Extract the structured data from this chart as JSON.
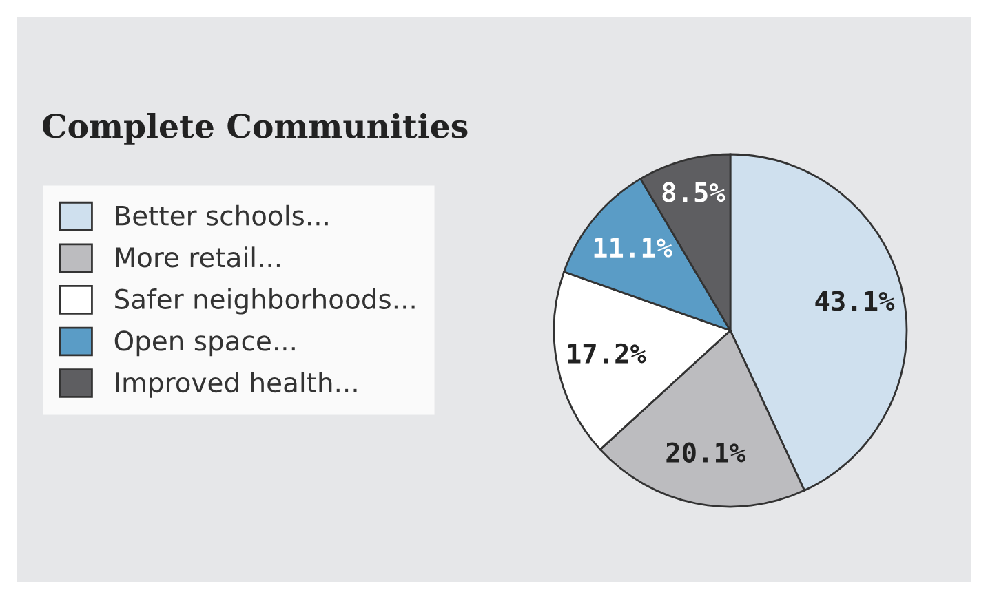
{
  "chart_data": {
    "type": "pie",
    "title": "Complete Communities",
    "categories": [
      "Better schools...",
      "More retail...",
      "Safer neighborhoods...",
      "Open space...",
      "Improved health..."
    ],
    "values": [
      43.1,
      20.1,
      17.2,
      11.1,
      8.5
    ],
    "colors": [
      "#cfe0ee",
      "#bcbcbf",
      "#ffffff",
      "#5a9cc6",
      "#5e5e61"
    ],
    "value_labels": [
      "43.1%",
      "20.1%",
      "17.2%",
      "11.1%",
      "8.5%"
    ],
    "legend": "left"
  }
}
